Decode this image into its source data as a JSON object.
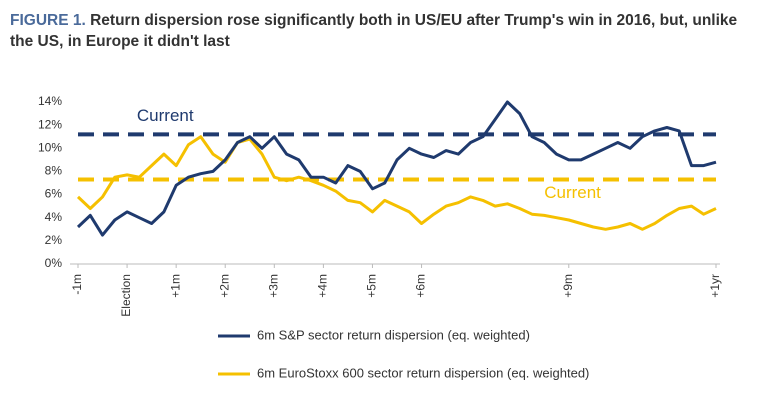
{
  "chart_data": {
    "type": "line",
    "figure_label": "FIGURE 1.",
    "title": "Return dispersion rose significantly both in US/EU after Trump's win in 2016, but, unlike the US, in Europe it didn't last",
    "x": [
      -1,
      -0.75,
      -0.5,
      -0.25,
      0,
      0.25,
      0.5,
      0.75,
      1,
      1.25,
      1.5,
      1.75,
      2,
      2.25,
      2.5,
      2.75,
      3,
      3.25,
      3.5,
      3.75,
      4,
      4.25,
      4.5,
      4.75,
      5,
      5.25,
      5.5,
      5.75,
      6,
      6.25,
      6.5,
      6.75,
      7,
      7.25,
      7.5,
      7.75,
      8,
      8.25,
      8.5,
      8.75,
      9,
      9.25,
      9.5,
      9.75,
      10,
      10.25,
      10.5,
      10.75,
      11,
      11.25,
      11.5,
      11.75,
      12
    ],
    "xlim": [
      -1,
      12
    ],
    "xticks": [
      {
        "value": -1,
        "label": "-1m"
      },
      {
        "value": 0,
        "label": "Election"
      },
      {
        "value": 1,
        "label": "+1m"
      },
      {
        "value": 2,
        "label": "+2m"
      },
      {
        "value": 3,
        "label": "+3m"
      },
      {
        "value": 4,
        "label": "+4m"
      },
      {
        "value": 5,
        "label": "+5m"
      },
      {
        "value": 6,
        "label": "+6m"
      },
      {
        "value": 9,
        "label": "+9m"
      },
      {
        "value": 12,
        "label": "+1yr"
      }
    ],
    "ylim": [
      0,
      14
    ],
    "yticks": [
      {
        "value": 0,
        "label": "0%"
      },
      {
        "value": 2,
        "label": "2%"
      },
      {
        "value": 4,
        "label": "4%"
      },
      {
        "value": 6,
        "label": "6%"
      },
      {
        "value": 8,
        "label": "8%"
      },
      {
        "value": 10,
        "label": "10%"
      },
      {
        "value": 12,
        "label": "12%"
      },
      {
        "value": 14,
        "label": "14%"
      }
    ],
    "grid": false,
    "series": [
      {
        "name": "6m S&P sector return dispersion (eq. weighted)",
        "color": "#1f3a6e",
        "values": [
          3.2,
          4.2,
          2.5,
          3.8,
          4.5,
          4.0,
          3.5,
          4.5,
          6.8,
          7.5,
          7.8,
          8.0,
          9.0,
          10.5,
          11.0,
          10.0,
          11.0,
          9.5,
          9.0,
          7.5,
          7.5,
          7.0,
          8.5,
          8.0,
          6.5,
          7.0,
          9.0,
          10.0,
          9.5,
          9.2,
          9.8,
          9.5,
          10.5,
          11.0,
          12.5,
          14.0,
          13.0,
          11.0,
          10.5,
          9.5,
          9.0,
          9.0,
          9.5,
          10.0,
          10.5,
          10.0,
          11.0,
          11.5,
          11.8,
          11.5,
          8.5,
          8.5,
          8.8
        ]
      },
      {
        "name": "6m EuroStoxx 600 sector return dispersion (eq. weighted)",
        "color": "#f5c000",
        "values": [
          5.8,
          4.8,
          5.8,
          7.5,
          7.7,
          7.5,
          8.5,
          9.5,
          8.5,
          10.3,
          11.0,
          9.5,
          8.8,
          10.5,
          10.8,
          9.5,
          7.5,
          7.2,
          7.5,
          7.2,
          6.8,
          6.3,
          5.5,
          5.3,
          4.5,
          5.5,
          5.0,
          4.5,
          3.5,
          4.3,
          5.0,
          5.3,
          5.8,
          5.5,
          5.0,
          5.2,
          4.8,
          4.3,
          4.2,
          4.0,
          3.8,
          3.5,
          3.2,
          3.0,
          3.2,
          3.5,
          3.0,
          3.5,
          4.2,
          4.8,
          5.0,
          4.3,
          4.8
        ]
      }
    ],
    "reference_lines": [
      {
        "value": 11.2,
        "label": "Current",
        "color": "#1f3a6e",
        "label_x": 0.2
      },
      {
        "value": 7.3,
        "label": "Current",
        "color": "#f5c000",
        "label_x": 8.5
      }
    ]
  }
}
